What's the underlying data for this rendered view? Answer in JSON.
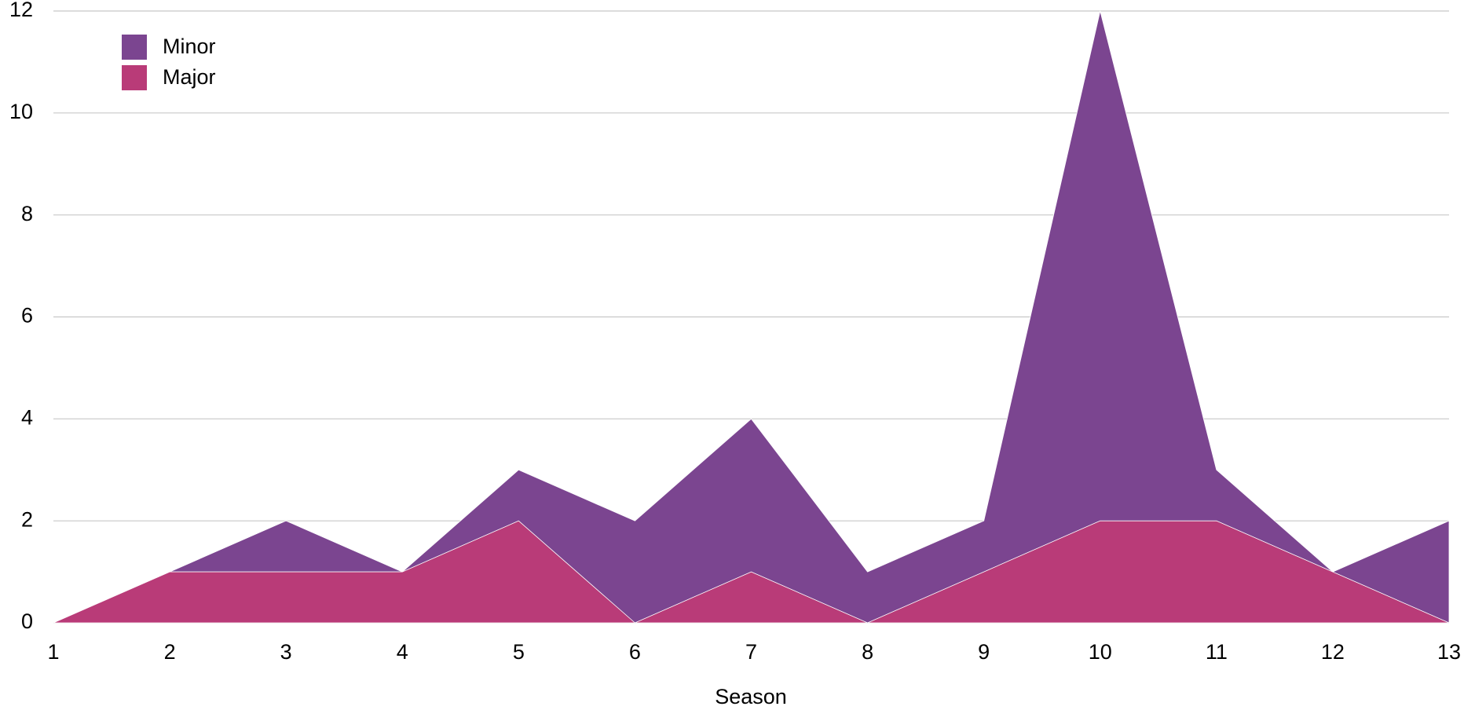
{
  "chart_data": {
    "type": "area",
    "x": [
      1,
      2,
      3,
      4,
      5,
      6,
      7,
      8,
      9,
      10,
      11,
      12,
      13
    ],
    "series": [
      {
        "name": "Minor",
        "color": "#7b4590",
        "values": [
          0,
          1,
          2,
          1,
          3,
          2,
          4,
          1,
          2,
          12,
          3,
          1,
          2
        ]
      },
      {
        "name": "Major",
        "color": "#b93b78",
        "values": [
          0,
          1,
          1,
          1,
          2,
          0,
          1,
          0,
          1,
          2,
          2,
          1,
          0
        ]
      }
    ],
    "x_label": "Season",
    "xlim": [
      1,
      13
    ],
    "xticks": [
      1,
      2,
      3,
      4,
      5,
      6,
      7,
      8,
      9,
      10,
      11,
      12,
      13
    ],
    "ylim": [
      0,
      12
    ],
    "yticks": [
      0,
      2,
      4,
      6,
      8,
      10,
      12
    ],
    "grid": true,
    "legend": "top-left"
  }
}
